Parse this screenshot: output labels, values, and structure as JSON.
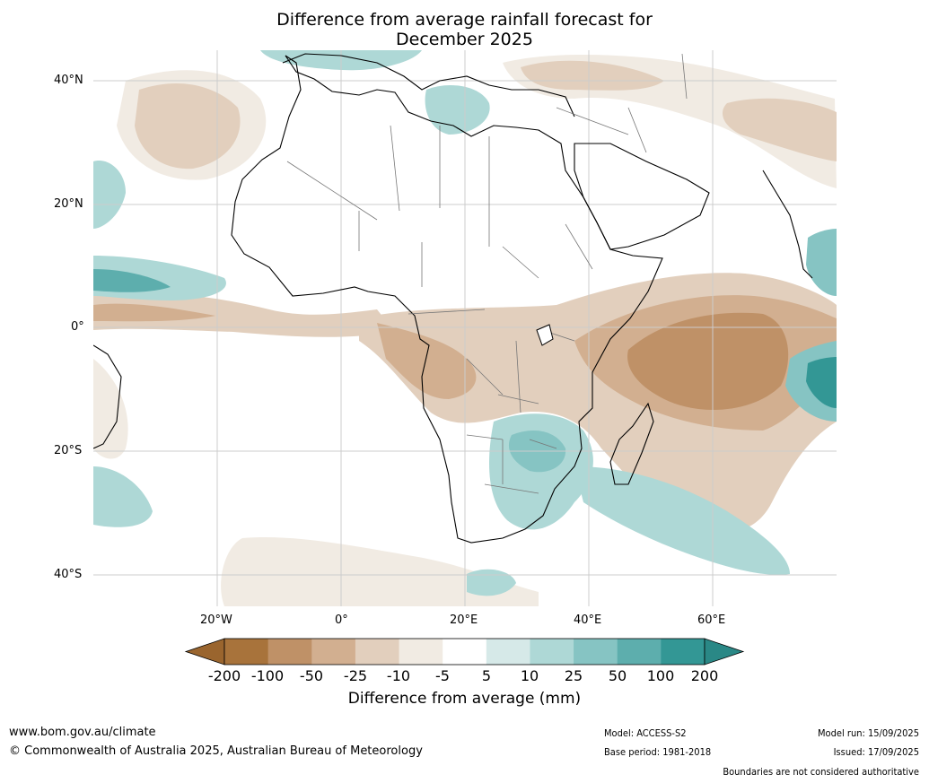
{
  "title_line1": "Difference from average rainfall forecast for",
  "title_line2": "December 2025",
  "lat_labels": [
    "40°N",
    "20°N",
    "0°",
    "20°S",
    "40°S"
  ],
  "lon_labels": [
    "20°W",
    "0°",
    "20°E",
    "40°E",
    "60°E"
  ],
  "colorbar": {
    "title": "Difference from average (mm)",
    "tick_labels": [
      "-200",
      "-100",
      "-50",
      "-25",
      "-10",
      "-5",
      "5",
      "10",
      "25",
      "50",
      "100",
      "200"
    ],
    "colors": [
      "#a8733b",
      "#bf9167",
      "#d2af90",
      "#e2cfbd",
      "#f1ebe3",
      "#ffffff",
      "#d6e9e8",
      "#aed8d6",
      "#86c4c3",
      "#5daead",
      "#339795"
    ],
    "under_color": "#9a652e",
    "over_color": "#2a8886"
  },
  "footer": {
    "site": "www.bom.gov.au/climate",
    "copyright": "© Commonwealth of Australia 2025, Australian Bureau of Meteorology",
    "model": "Model: ACCESS-S2",
    "base_period": "Base period: 1981-2018",
    "model_run": "Model run: 15/09/2025",
    "issued": "Issued: 17/09/2025",
    "disclaimer": "Boundaries are not considered authoritative"
  }
}
